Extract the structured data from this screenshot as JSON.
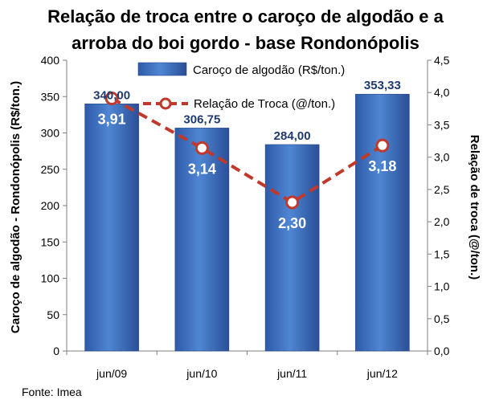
{
  "title_line1": "Relação de troca entre o caroço de algodão e a",
  "title_line2": "arroba do boi gordo - base Rondonópolis",
  "source": "Fonte: Imea",
  "chart_data": {
    "type": "bar",
    "categories": [
      "jun/09",
      "jun/10",
      "jun/11",
      "jun/12"
    ],
    "series": [
      {
        "name": "Caroço de algodão (R$/ton.)",
        "type": "bar",
        "axis": "left",
        "values": [
          340.0,
          306.75,
          284.0,
          353.33
        ],
        "labels": [
          "340,00",
          "306,75",
          "284,00",
          "353,33"
        ]
      },
      {
        "name": "Relação de Troca (@/ton.)",
        "type": "line",
        "axis": "right",
        "values": [
          3.91,
          3.14,
          2.3,
          3.18
        ],
        "labels": [
          "3,91",
          "3,14",
          "2,30",
          "3,18"
        ]
      }
    ],
    "ylabel": "Caroço de algodão - Rondonópolis (R$/ton.)",
    "ylim": [
      0,
      400
    ],
    "yticks": [
      "0",
      "50",
      "100",
      "150",
      "200",
      "250",
      "300",
      "350",
      "400"
    ],
    "y2label": "Relação de troca (@/ton.)",
    "y2lim": [
      0,
      4.5
    ],
    "y2ticks": [
      "0,0",
      "0,5",
      "1,0",
      "1,5",
      "2,0",
      "2,5",
      "3,0",
      "3,5",
      "4,0",
      "4,5"
    ],
    "legend_position": "top",
    "grid": false,
    "colors": {
      "bar": "#3f6fbf",
      "line": "#c0392b"
    }
  }
}
